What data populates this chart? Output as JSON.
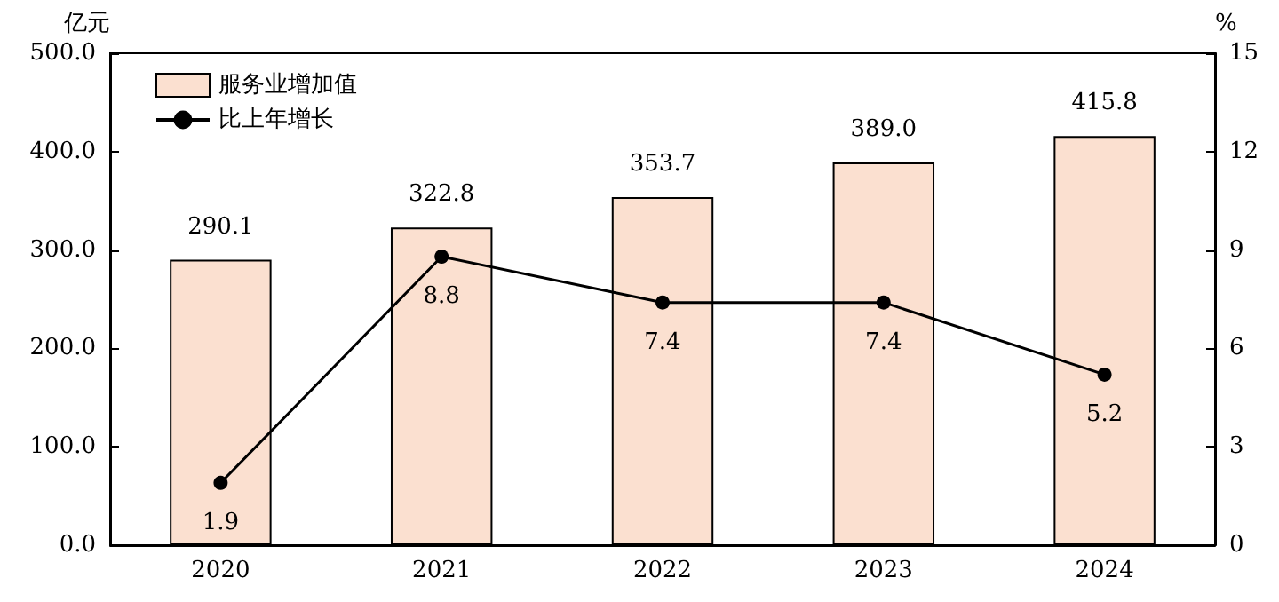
{
  "chart_data": {
    "type": "bar",
    "ylabel": "亿元",
    "y2label": "%",
    "categories": [
      "2020",
      "2021",
      "2022",
      "2023",
      "2024"
    ],
    "series": [
      {
        "name": "服务业增加值",
        "color": "#fbe0d0",
        "values": [
          290.1,
          322.8,
          353.7,
          389.0,
          415.8
        ],
        "value_labels": [
          "290.1",
          "322.8",
          "353.7",
          "389.0",
          "415.8"
        ]
      },
      {
        "name": "比上年增长",
        "type": "line",
        "axis": "y2",
        "color": "#000000",
        "values": [
          1.9,
          8.8,
          7.4,
          7.4,
          5.2
        ],
        "value_labels": [
          "1.9",
          "8.8",
          "7.4",
          "7.4",
          "5.2"
        ]
      }
    ],
    "ylim": [
      0,
      500
    ],
    "yticks": [
      {
        "value": 0,
        "label": "0.0"
      },
      {
        "value": 100,
        "label": "100.0"
      },
      {
        "value": 200,
        "label": "200.0"
      },
      {
        "value": 300,
        "label": "300.0"
      },
      {
        "value": 400,
        "label": "400.0"
      },
      {
        "value": 500,
        "label": "500.0"
      }
    ],
    "y2lim": [
      0,
      15
    ],
    "y2ticks": [
      0,
      3,
      6,
      9,
      12,
      15
    ],
    "legend": "top left",
    "grid": false,
    "marker": "circle",
    "line_style": "solid"
  }
}
